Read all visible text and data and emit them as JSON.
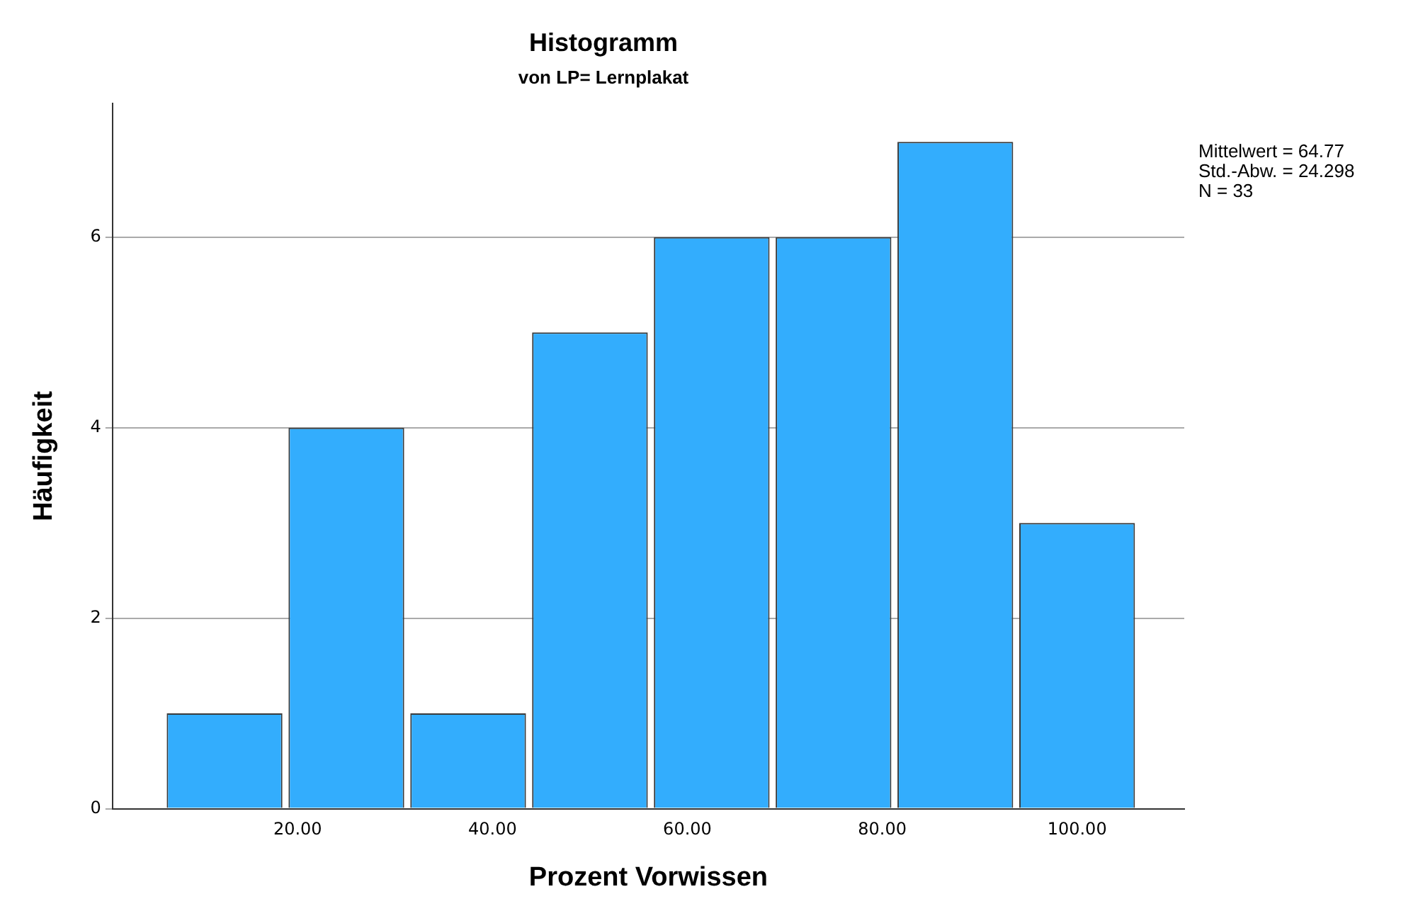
{
  "chart_data": {
    "type": "histogram",
    "title": "Histogramm",
    "subtitle": "von LP= Lernplakat",
    "xlabel": "Prozent Vorwissen",
    "ylabel": "Häufigkeit",
    "bins": [
      6.25,
      18.75,
      31.25,
      43.75,
      56.25,
      68.75,
      81.25,
      93.75,
      106.25
    ],
    "values": [
      1,
      4,
      1,
      5,
      6,
      6,
      7,
      3
    ],
    "color": "#33adfd",
    "xlim": [
      1,
      111
    ],
    "xticks": [
      {
        "value": 20,
        "label": "20.00"
      },
      {
        "value": 40,
        "label": "40.00"
      },
      {
        "value": 60,
        "label": "60.00"
      },
      {
        "value": 80,
        "label": "80.00"
      },
      {
        "value": 100,
        "label": "100.00"
      }
    ],
    "ylim": [
      0,
      7.4
    ],
    "yticks": [
      0,
      2,
      4,
      6
    ],
    "grid": "y",
    "annotations": [
      "Mittelwert = 64.77\nStd.-Abw. = 24.298\nN = 33"
    ]
  }
}
